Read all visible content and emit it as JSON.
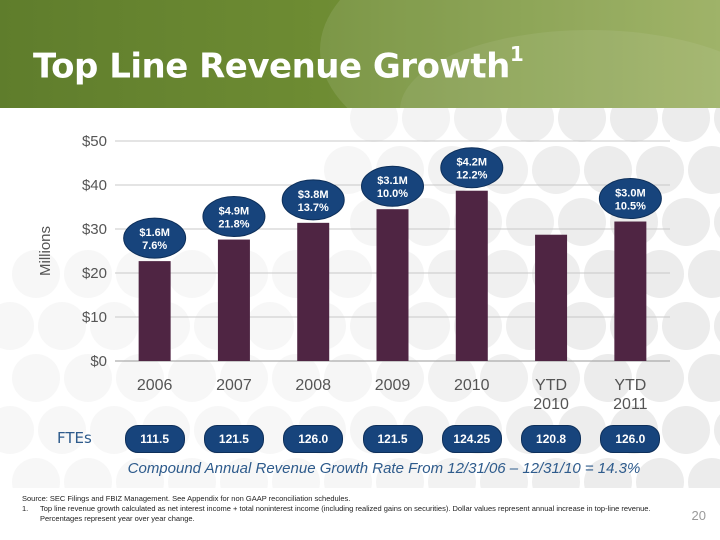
{
  "slide": {
    "title": "Top Line Revenue Growth",
    "title_superscript": "1",
    "page_number": "20"
  },
  "colors": {
    "header_green": "#6e8c33",
    "bar": "#4f2543",
    "pill_blue": "#17447c",
    "text_blue": "#2e5b8c"
  },
  "chart_data": {
    "type": "bar",
    "ylabel": "Millions",
    "ylim": [
      0,
      50
    ],
    "yticks": [
      "$0",
      "$10",
      "$20",
      "$30",
      "$40",
      "$50"
    ],
    "ytick_values": [
      0,
      10,
      20,
      30,
      40,
      50
    ],
    "grid": true,
    "categories": [
      "2006",
      "2007",
      "2008",
      "2009",
      "2010",
      "YTD 2010",
      "YTD 2011"
    ],
    "values": [
      22.7,
      27.6,
      31.4,
      34.5,
      38.7,
      28.7,
      31.7
    ],
    "annotations": [
      {
        "category": "2006",
        "line1": "$1.6M",
        "line2": "7.6%"
      },
      {
        "category": "2007",
        "line1": "$4.9M",
        "line2": "21.8%"
      },
      {
        "category": "2008",
        "line1": "$3.8M",
        "line2": "13.7%"
      },
      {
        "category": "2009",
        "line1": "$3.1M",
        "line2": "10.0%"
      },
      {
        "category": "2010",
        "line1": "$4.2M",
        "line2": "12.2%"
      },
      {
        "category": "YTD 2011",
        "line1": "$3.0M",
        "line2": "10.5%"
      }
    ]
  },
  "ftes": {
    "label": "FTEs",
    "values": [
      "111.5",
      "121.5",
      "126.0",
      "121.5",
      "124.25",
      "120.8",
      "126.0"
    ]
  },
  "cagr_text": "Compound Annual Revenue Growth Rate From 12/31/06 – 12/31/10 = 14.3%",
  "footer": {
    "source": "Source: SEC Filings and FBIZ Management. See Appendix for non GAAP reconciliation schedules.",
    "footnote_number": "1.",
    "footnote_text": "Top line revenue growth calculated as net interest income + total noninterest income (including realized gains on securities). Dollar values represent annual increase in top-line revenue. Percentages represent year over year change."
  }
}
